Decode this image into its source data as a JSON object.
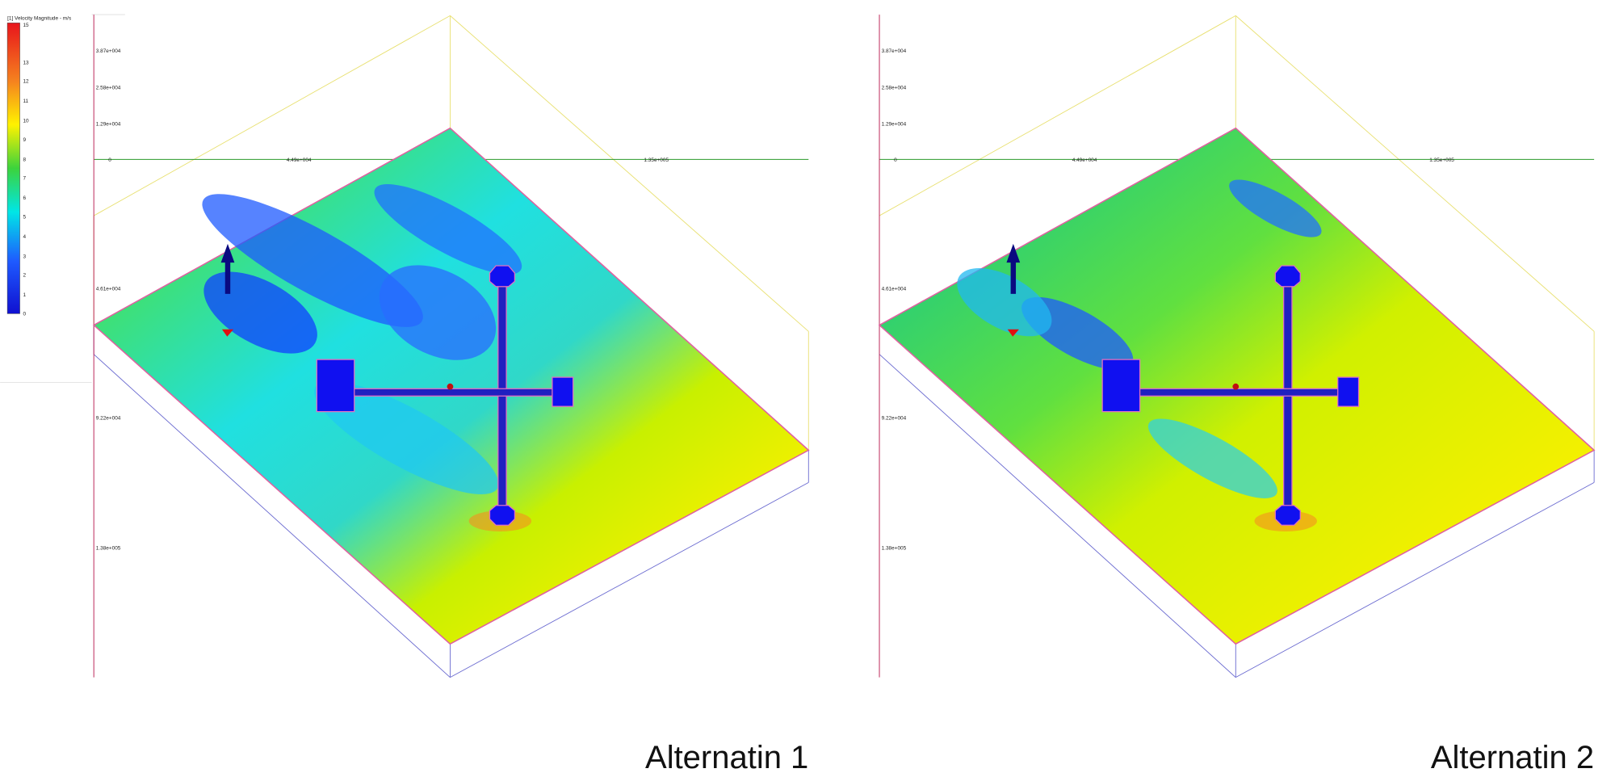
{
  "legend": {
    "title": "[1] Velocity Magnitude - m/s",
    "ticks": [
      "15",
      "13",
      "12",
      "11",
      "10",
      "9",
      "8",
      "7",
      "6",
      "5",
      "4",
      "3",
      "2",
      "1",
      "0"
    ]
  },
  "panels": [
    {
      "caption": "Alternatin 1",
      "x_axis_labels": [
        "0",
        "4.49e+004",
        "1.35e+005"
      ],
      "y_axis_labels": [
        "3.87e+004",
        "2.58e+004",
        "1.29e+004",
        "4.61e+004",
        "9.22e+004",
        "1.38e+005"
      ]
    },
    {
      "caption": "Alternatin 2",
      "x_axis_labels": [
        "0",
        "4.49e+004",
        "1.35e+005"
      ],
      "y_axis_labels": [
        "3.87e+004",
        "2.58e+004",
        "1.29e+004",
        "4.61e+004",
        "9.22e+004",
        "1.38e+005"
      ]
    }
  ]
}
